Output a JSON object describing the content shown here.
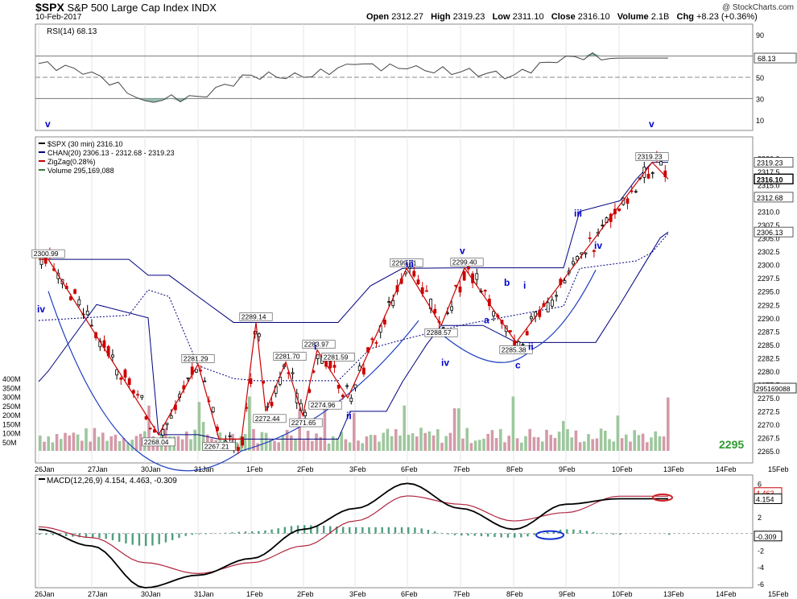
{
  "header": {
    "symbol": "$SPX",
    "name": "S&P 500 Large Cap Index",
    "exchange": "INDX",
    "date": "10-Feb-2017",
    "open_label": "Open",
    "open": "2312.27",
    "high_label": "High",
    "high": "2319.23",
    "low_label": "Low",
    "low": "2311.10",
    "close_label": "Close",
    "close": "2316.10",
    "volume_label": "Volume",
    "volume": "2.1B",
    "chg_label": "Chg",
    "chg": "+8.23 (+0.36%)",
    "copyright": "@ StockCharts.com"
  },
  "colors": {
    "price": "#000000",
    "channel": "#00007f",
    "zigzag": "#cc0000",
    "volume_up": "#9dc79d",
    "volume_down": "#d49aa8",
    "rsi_fill": "#7faf9f",
    "macd": "#000000",
    "signal": "#b0243f",
    "hist": "#4f9f7f",
    "wave_label": "#0000cc",
    "target": "#2e9a2e"
  },
  "rsi_panel": {
    "label": "RSI(14) 68.13",
    "ticks": [
      "90",
      "70",
      "50",
      "30",
      "10"
    ],
    "current": "68.13"
  },
  "price_panel": {
    "legend": [
      "$SPX (30 min) 2316.10",
      "CHAN(20) 2306.13 - 2312.68 - 2319.23",
      "ZigZag(0.28%)",
      "Volume 295,169,088"
    ],
    "ticks": [
      "2320.0",
      "2317.5",
      "2315.0",
      "2312.5",
      "2310.0",
      "2307.5",
      "2305.0",
      "2302.5",
      "2300.0",
      "2297.5",
      "2295.0",
      "2292.5",
      "2290.0",
      "2287.5",
      "2285.0",
      "2282.5",
      "2280.0",
      "2277.5",
      "2275.0",
      "2272.5",
      "2270.0",
      "2267.5",
      "2265.0"
    ],
    "price_tags": [
      "2319.23",
      "2316.10",
      "2312.68",
      "2306.13"
    ],
    "volume_ticks": [
      "400M",
      "350M",
      "300M",
      "250M",
      "200M",
      "150M",
      "100M",
      "50M"
    ],
    "volume_tag": "295169088",
    "target_label": "2295",
    "pivot_labels": [
      "2300.99",
      "2268.04",
      "2281.29",
      "2267.21",
      "2289.14",
      "2272.44",
      "2281.70",
      "2271.65",
      "2283.97",
      "2281.59",
      "2274.96",
      "2299.31",
      "2288.57",
      "2299.40",
      "2285.38",
      "2319.23"
    ],
    "wave_labels": [
      "v",
      "iv",
      "i",
      "ii",
      "iii",
      "iv",
      "v",
      "a",
      "b",
      "i",
      "c",
      "ii",
      "iii",
      "iv",
      "v"
    ]
  },
  "macd_panel": {
    "label": "MACD(12,26,9) 4.154, 4.463, -0.309",
    "ticks": [
      "6",
      "4",
      "2",
      "0",
      "-2",
      "-4",
      "-6"
    ],
    "tags": [
      "4.463",
      "4.154",
      "-0.309"
    ]
  },
  "x_axis_dates": [
    "26Jan",
    "27Jan",
    "30Jan",
    "31Jan",
    "1Feb",
    "2Feb",
    "3Feb",
    "6Feb",
    "7Feb",
    "8Feb",
    "9Feb",
    "10Feb",
    "13Feb",
    "14Feb",
    "15Feb"
  ],
  "chart_data": [
    {
      "type": "line",
      "title": "RSI(14) 68.13",
      "x": [
        "26Jan",
        "27Jan",
        "30Jan",
        "31Jan",
        "1Feb",
        "2Feb",
        "3Feb",
        "6Feb",
        "7Feb",
        "8Feb",
        "9Feb",
        "10Feb"
      ],
      "series": [
        {
          "name": "RSI(14)",
          "values": [
            63,
            55,
            28,
            32,
            52,
            50,
            62,
            58,
            55,
            52,
            70,
            68.13
          ]
        }
      ],
      "ylim": [
        0,
        100
      ]
    },
    {
      "type": "line",
      "title": "$SPX (30 min) 2316.10",
      "x": [
        "26Jan",
        "26Jan",
        "30Jan",
        "30Jan",
        "31Jan",
        "31Jan",
        "1Feb",
        "1Feb",
        "2Feb",
        "2Feb",
        "2Feb",
        "3Feb",
        "6Feb",
        "6Feb",
        "7Feb",
        "8Feb",
        "10Feb",
        "10Feb"
      ],
      "series": [
        {
          "name": "ZigZag(0.28%)",
          "values": [
            2300.99,
            2300.99,
            2268.04,
            2281.29,
            2267.21,
            2267.21,
            2289.14,
            2272.44,
            2281.7,
            2271.65,
            2283.97,
            2274.96,
            2299.31,
            2288.57,
            2299.4,
            2285.38,
            2319.23,
            2316.1
          ]
        }
      ],
      "ylim": [
        2265,
        2322.5
      ]
    },
    {
      "type": "line",
      "title": "MACD(12,26,9) 4.154, 4.463, -0.309",
      "x": [
        "26Jan",
        "27Jan",
        "30Jan",
        "31Jan",
        "1Feb",
        "2Feb",
        "3Feb",
        "6Feb",
        "7Feb",
        "8Feb",
        "9Feb",
        "10Feb"
      ],
      "series": [
        {
          "name": "MACD",
          "values": [
            0.5,
            -1.5,
            -6.5,
            -5,
            -3,
            0.5,
            3,
            6,
            3,
            0.5,
            3.5,
            4.154
          ]
        },
        {
          "name": "Signal",
          "values": [
            0.8,
            -0.5,
            -3.5,
            -4.8,
            -3.5,
            -1.5,
            1.5,
            4.5,
            3.5,
            1.5,
            2.5,
            4.463
          ]
        }
      ],
      "ylim": [
        -6.5,
        7
      ]
    }
  ]
}
